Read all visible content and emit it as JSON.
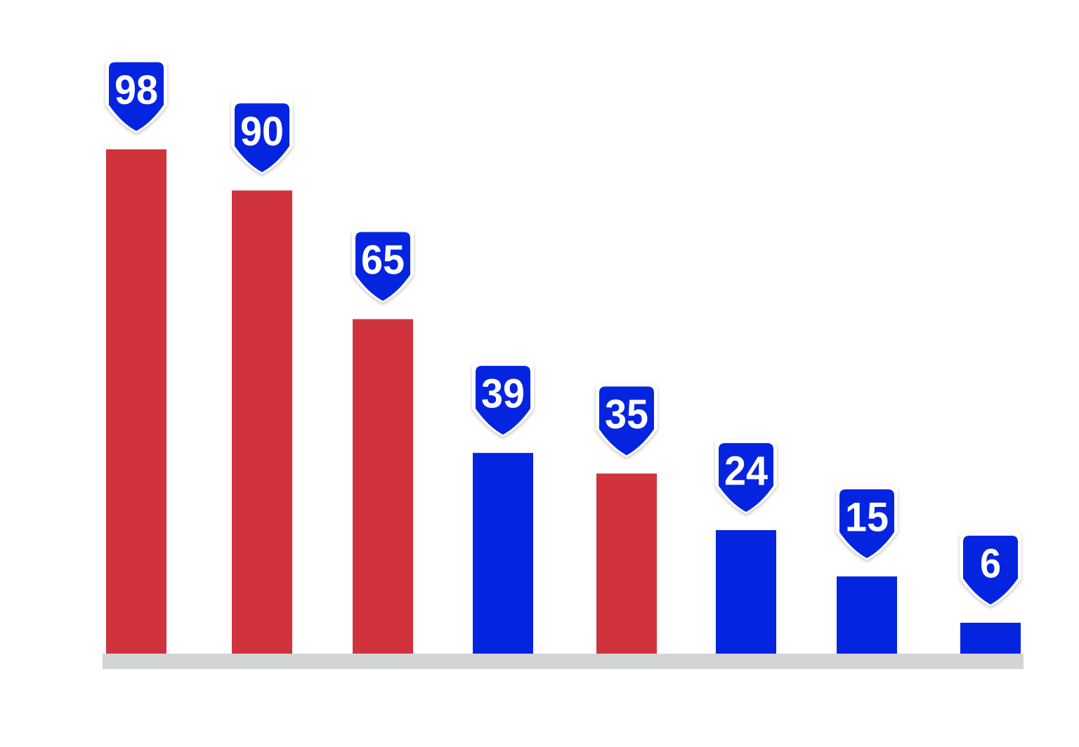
{
  "chart_data": {
    "type": "bar",
    "title": "",
    "xlabel": "",
    "ylabel": "",
    "ylim": [
      0,
      100
    ],
    "grid": false,
    "values": [
      98,
      90,
      65,
      39,
      35,
      24,
      15,
      6
    ],
    "labels": [
      "98",
      "90",
      "65",
      "39",
      "35",
      "24",
      "15",
      "6"
    ],
    "bar_colors": [
      "#d0333c",
      "#d0333c",
      "#d0333c",
      "#0524e0",
      "#d0333c",
      "#0524e0",
      "#0524e0",
      "#0524e0"
    ],
    "label_badge": {
      "shape": "shield-icon",
      "fill": "#0524e0",
      "text_color": "#ffffff"
    },
    "baseline_color": "#d3d4d6"
  }
}
